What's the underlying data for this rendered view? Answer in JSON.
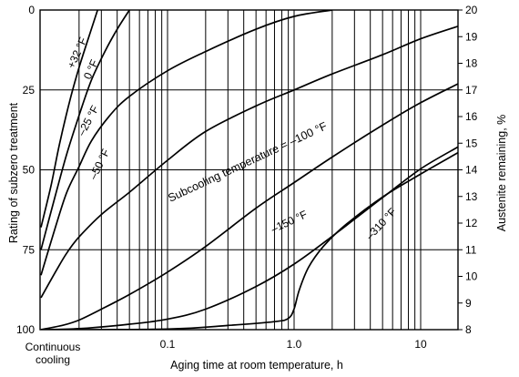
{
  "chart_data": {
    "type": "line",
    "title": "",
    "xlabel": "Aging time at room temperature, h",
    "ylabel": "Rating of subzero treatment",
    "y2label": "Austenite remaining, %",
    "x_scale": "log",
    "x_origin_label": [
      "Continuous",
      "cooling"
    ],
    "x_ticks": [
      {
        "value": 0.1,
        "label": "0.1"
      },
      {
        "value": 1.0,
        "label": "1.0"
      },
      {
        "value": 10,
        "label": "10"
      }
    ],
    "ylim": [
      0,
      100
    ],
    "y_inverted": true,
    "y_ticks": [
      0,
      25,
      50,
      75,
      100
    ],
    "y2lim": [
      8,
      20
    ],
    "y2_ticks": [
      8,
      9,
      10,
      11,
      12,
      13,
      14,
      15,
      16,
      17,
      18,
      19,
      20
    ],
    "grid": true,
    "series": [
      {
        "name": "+32 °F",
        "points": [
          [
            0.01,
            68
          ],
          [
            0.012,
            55
          ],
          [
            0.014,
            42
          ],
          [
            0.017,
            28
          ],
          [
            0.02,
            18
          ],
          [
            0.025,
            6
          ],
          [
            0.028,
            0
          ]
        ]
      },
      {
        "name": "0 °F",
        "points": [
          [
            0.01,
            75
          ],
          [
            0.013,
            58
          ],
          [
            0.016,
            45
          ],
          [
            0.02,
            33
          ],
          [
            0.025,
            22
          ],
          [
            0.032,
            13
          ],
          [
            0.04,
            6
          ],
          [
            0.05,
            0
          ]
        ]
      },
      {
        "name": "–25 °F",
        "points": [
          [
            0.01,
            83
          ],
          [
            0.013,
            68
          ],
          [
            0.016,
            57
          ],
          [
            0.02,
            49
          ],
          [
            0.025,
            41
          ],
          [
            0.035,
            33
          ],
          [
            0.05,
            27
          ],
          [
            0.1,
            19
          ],
          [
            0.2,
            13
          ],
          [
            0.5,
            6
          ],
          [
            1.0,
            2
          ],
          [
            2.0,
            0
          ]
        ]
      },
      {
        "name": "–50 °F",
        "points": [
          [
            0.01,
            90
          ],
          [
            0.013,
            82
          ],
          [
            0.016,
            76
          ],
          [
            0.02,
            71
          ],
          [
            0.03,
            64
          ],
          [
            0.05,
            57
          ],
          [
            0.1,
            47
          ],
          [
            0.2,
            38
          ],
          [
            0.5,
            30
          ],
          [
            1.0,
            25
          ],
          [
            2.0,
            20
          ],
          [
            5.0,
            14
          ],
          [
            10,
            9
          ],
          [
            20,
            5
          ]
        ]
      },
      {
        "name": "Subcooling temperature = –100 °F",
        "points": [
          [
            0.01,
            100
          ],
          [
            0.015,
            98.6
          ],
          [
            0.02,
            97
          ],
          [
            0.03,
            93.6
          ],
          [
            0.05,
            89
          ],
          [
            0.1,
            82
          ],
          [
            0.2,
            74
          ],
          [
            0.5,
            62
          ],
          [
            1.0,
            54
          ],
          [
            2.0,
            46
          ],
          [
            5.0,
            36
          ],
          [
            10,
            29
          ],
          [
            20,
            23
          ]
        ]
      },
      {
        "name": "–150 °F",
        "points": [
          [
            0.01,
            100
          ],
          [
            0.02,
            99.7
          ],
          [
            0.05,
            98.3
          ],
          [
            0.1,
            96.7
          ],
          [
            0.2,
            93.6
          ],
          [
            0.5,
            86.5
          ],
          [
            1.0,
            79.5
          ],
          [
            2.0,
            70.8
          ],
          [
            5.0,
            58.7
          ],
          [
            10,
            49.7
          ],
          [
            20,
            42.7
          ]
        ]
      },
      {
        "name": "–310 °F",
        "points": [
          [
            0.01,
            100
          ],
          [
            0.1,
            99.8
          ],
          [
            0.3,
            98.7
          ],
          [
            0.7,
            97.5
          ],
          [
            0.9,
            96.5
          ],
          [
            1.0,
            93.5
          ],
          [
            1.1,
            87.5
          ],
          [
            1.3,
            80.5
          ],
          [
            1.7,
            74
          ],
          [
            2.5,
            67.5
          ],
          [
            5.0,
            58.5
          ],
          [
            10,
            51.3
          ],
          [
            20,
            44.5
          ]
        ]
      }
    ]
  }
}
